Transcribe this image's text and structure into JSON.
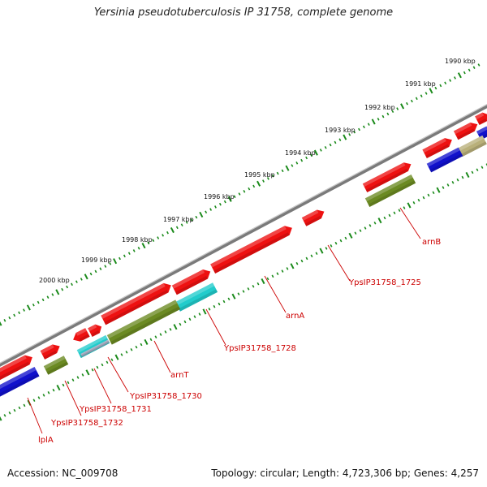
{
  "title": "Yersinia pseudotuberculosis IP 31758, complete genome",
  "footer": {
    "accession": "Accession: NC_009708",
    "summary": "Topology: circular; Length: 4,723,306 bp; Genes: 4,257"
  },
  "scale_labels": [
    "1990 kbp",
    "1991 kbp",
    "1992 kbp",
    "1993 kbp",
    "1994 kbp",
    "1995 kbp",
    "1996 kbp",
    "1997 kbp",
    "1998 kbp",
    "1999 kbp",
    "2000 kbp"
  ],
  "gene_labels": [
    "arnB",
    "YpsIP31758_1725",
    "arnA",
    "YpsIP31758_1728",
    "arnT",
    "YpsIP31758_1730",
    "YpsIP31758_1731",
    "YpsIP31758_1732",
    "lplA"
  ],
  "colors": {
    "forward_cds": "#ee1111",
    "blue_cds": "#1111cc",
    "olive_cds": "#6b8a22",
    "cyan_cds": "#22cccc",
    "khaki_cds": "#b9b07a",
    "backbone": "#808080",
    "tick": "#1a8a1a",
    "label": "#cc0000"
  }
}
